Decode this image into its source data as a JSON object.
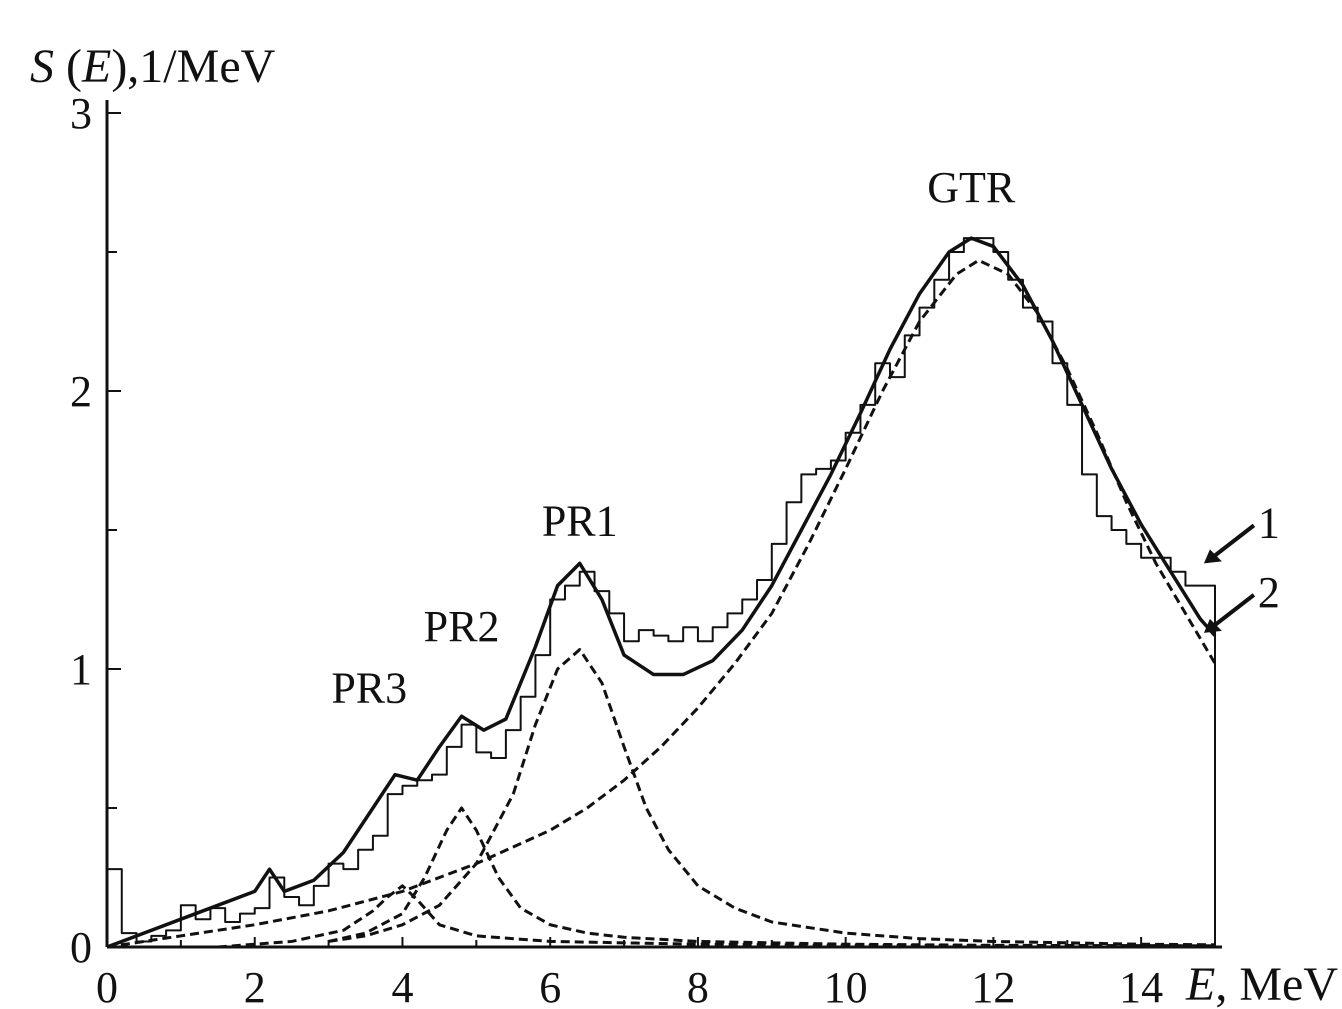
{
  "chart_data": {
    "type": "line",
    "title": "",
    "ylabel_parts": [
      "S",
      " (",
      "E",
      "),1/MeV"
    ],
    "xlabel_parts": [
      "E",
      ", MeV"
    ],
    "xlim": [
      0,
      15
    ],
    "ylim": [
      0,
      3
    ],
    "x_ticks": [
      0,
      2,
      4,
      6,
      8,
      10,
      12,
      14
    ],
    "y_ticks": [
      0,
      1,
      2,
      3
    ],
    "y_minor_ticks": [
      0.5,
      1.5,
      2.5
    ],
    "grid": false,
    "legend": "none",
    "series": [
      {
        "name": "1",
        "style": "histogram",
        "x": [
          0,
          0.2,
          0.4,
          0.6,
          0.8,
          1.0,
          1.2,
          1.4,
          1.6,
          1.8,
          2.0,
          2.2,
          2.4,
          2.6,
          2.8,
          3.0,
          3.2,
          3.4,
          3.6,
          3.8,
          4.0,
          4.2,
          4.4,
          4.6,
          4.8,
          5.0,
          5.2,
          5.4,
          5.6,
          5.8,
          6.0,
          6.2,
          6.4,
          6.6,
          6.8,
          7.0,
          7.2,
          7.4,
          7.6,
          7.8,
          8.0,
          8.2,
          8.4,
          8.6,
          8.8,
          9.0,
          9.2,
          9.4,
          9.6,
          9.8,
          10.0,
          10.2,
          10.4,
          10.6,
          10.8,
          11.0,
          11.2,
          11.4,
          11.6,
          11.8,
          12.0,
          12.2,
          12.4,
          12.6,
          12.8,
          13.0,
          13.2,
          13.4,
          13.6,
          13.8,
          14.0,
          14.2,
          14.4,
          14.6,
          14.8
        ],
        "values": [
          0.28,
          0.05,
          0.02,
          0.04,
          0.06,
          0.15,
          0.1,
          0.14,
          0.09,
          0.12,
          0.14,
          0.25,
          0.18,
          0.15,
          0.22,
          0.3,
          0.28,
          0.35,
          0.4,
          0.55,
          0.58,
          0.6,
          0.62,
          0.72,
          0.8,
          0.7,
          0.68,
          0.78,
          0.9,
          1.05,
          1.25,
          1.3,
          1.35,
          1.28,
          1.2,
          1.1,
          1.14,
          1.12,
          1.1,
          1.15,
          1.1,
          1.15,
          1.2,
          1.25,
          1.32,
          1.45,
          1.6,
          1.7,
          1.72,
          1.75,
          1.85,
          1.95,
          2.1,
          2.05,
          2.2,
          2.3,
          2.4,
          2.5,
          2.55,
          2.55,
          2.5,
          2.4,
          2.3,
          2.25,
          2.1,
          1.95,
          1.7,
          1.55,
          1.5,
          1.45,
          1.4,
          1.4,
          1.35,
          1.3,
          1.3
        ]
      },
      {
        "name": "2",
        "style": "solid",
        "x": [
          0,
          0.5,
          1.0,
          1.5,
          2.0,
          2.2,
          2.4,
          2.8,
          3.2,
          3.6,
          3.9,
          4.2,
          4.5,
          4.8,
          5.1,
          5.4,
          5.8,
          6.1,
          6.4,
          6.7,
          7.0,
          7.4,
          7.8,
          8.2,
          8.6,
          9.0,
          9.4,
          9.8,
          10.2,
          10.6,
          11.0,
          11.4,
          11.7,
          12.0,
          12.4,
          12.8,
          13.2,
          13.6,
          14.0,
          14.4,
          14.8,
          15.0
        ],
        "values": [
          0.0,
          0.05,
          0.1,
          0.15,
          0.2,
          0.28,
          0.2,
          0.24,
          0.34,
          0.5,
          0.62,
          0.6,
          0.72,
          0.83,
          0.78,
          0.82,
          1.08,
          1.3,
          1.38,
          1.25,
          1.05,
          0.98,
          0.98,
          1.03,
          1.14,
          1.3,
          1.5,
          1.7,
          1.92,
          2.15,
          2.35,
          2.5,
          2.55,
          2.52,
          2.38,
          2.18,
          1.95,
          1.72,
          1.52,
          1.35,
          1.18,
          1.12
        ]
      },
      {
        "name": "GTR",
        "style": "dashed",
        "x": [
          0,
          1,
          2,
          3,
          4,
          5,
          6,
          6.5,
          7,
          7.5,
          8,
          8.5,
          9,
          9.5,
          10,
          10.5,
          11,
          11.5,
          11.8,
          12.2,
          12.6,
          13,
          13.4,
          13.8,
          14.2,
          14.6,
          15.0
        ],
        "values": [
          0.0,
          0.04,
          0.08,
          0.13,
          0.2,
          0.3,
          0.42,
          0.5,
          0.6,
          0.72,
          0.86,
          1.02,
          1.2,
          1.45,
          1.72,
          2.0,
          2.25,
          2.42,
          2.47,
          2.42,
          2.28,
          2.08,
          1.85,
          1.6,
          1.38,
          1.2,
          1.02
        ]
      },
      {
        "name": "PR1",
        "style": "dashed",
        "x": [
          3,
          3.5,
          4,
          4.5,
          5,
          5.5,
          5.8,
          6.1,
          6.4,
          6.7,
          7.0,
          7.3,
          7.6,
          8,
          8.5,
          9,
          10,
          11,
          12,
          13,
          14,
          15
        ],
        "values": [
          0.02,
          0.04,
          0.08,
          0.15,
          0.3,
          0.55,
          0.8,
          1.0,
          1.07,
          0.95,
          0.72,
          0.5,
          0.35,
          0.22,
          0.14,
          0.09,
          0.05,
          0.03,
          0.02,
          0.015,
          0.01,
          0.008
        ]
      },
      {
        "name": "PR2",
        "style": "dashed",
        "x": [
          3,
          3.5,
          4,
          4.3,
          4.6,
          4.8,
          5.0,
          5.3,
          5.6,
          6,
          6.5,
          7,
          8,
          9,
          10,
          12,
          15
        ],
        "values": [
          0.02,
          0.05,
          0.12,
          0.25,
          0.42,
          0.5,
          0.42,
          0.25,
          0.14,
          0.08,
          0.05,
          0.035,
          0.02,
          0.015,
          0.01,
          0.006,
          0.004
        ]
      },
      {
        "name": "PR3",
        "style": "dashed",
        "x": [
          1.5,
          2.5,
          3.2,
          3.6,
          3.8,
          4.0,
          4.2,
          4.5,
          5,
          6,
          8,
          10,
          15
        ],
        "values": [
          0.0,
          0.02,
          0.06,
          0.13,
          0.18,
          0.22,
          0.17,
          0.08,
          0.04,
          0.02,
          0.01,
          0.006,
          0.004
        ]
      }
    ],
    "annotations": [
      {
        "text": "GTR",
        "x": 11.7,
        "y": 2.68
      },
      {
        "text": "PR1",
        "x": 6.4,
        "y": 1.48
      },
      {
        "text": "PR2",
        "x": 4.8,
        "y": 1.1
      },
      {
        "text": "PR3",
        "x": 3.55,
        "y": 0.88
      }
    ],
    "curve_labels": [
      {
        "text": "1",
        "arrow_to": [
          14.85,
          1.38
        ]
      },
      {
        "text": "2",
        "arrow_to": [
          14.85,
          1.13
        ]
      }
    ]
  }
}
